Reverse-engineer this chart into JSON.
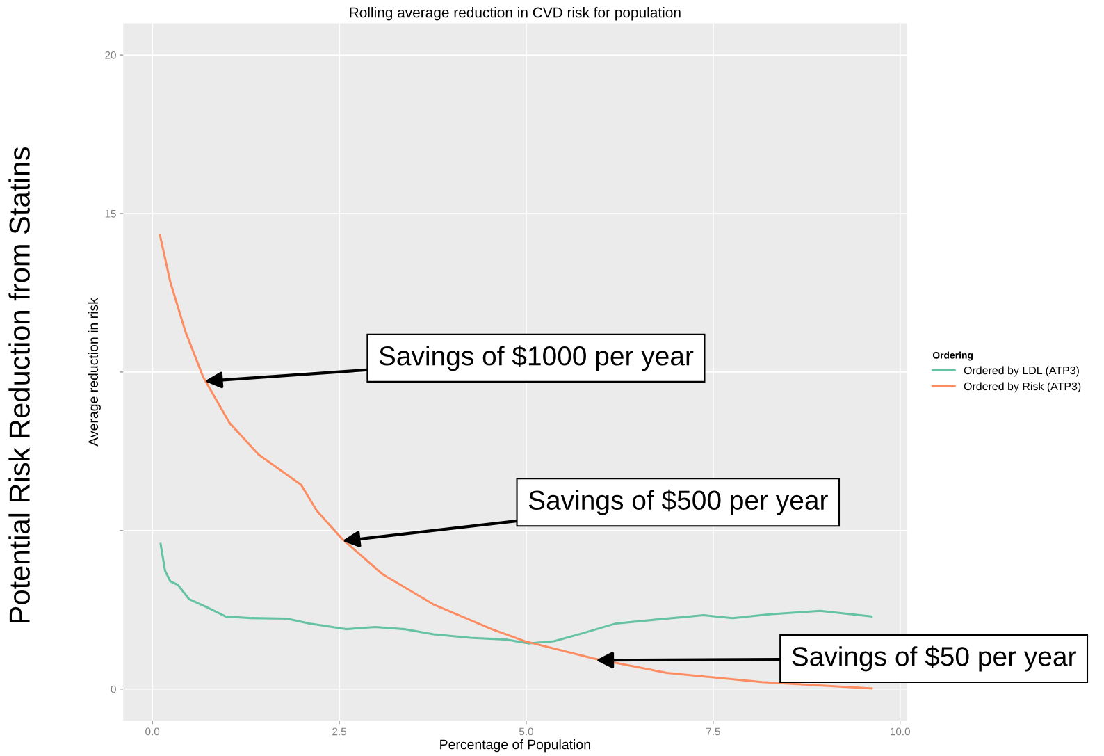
{
  "chart_data": {
    "type": "line",
    "title": "Rolling average reduction in CVD risk for population",
    "xlabel": "Percentage of Population",
    "ylabel": "Average reduction in risk",
    "legend_title": "Ordering",
    "xlim": [
      -0.39,
      10.09
    ],
    "xticks": [
      {
        "value": 0,
        "label": "0.0"
      },
      2.5,
      {
        "value": 5,
        "label": "5.0"
      },
      7.5,
      {
        "value": 10,
        "label": "10.0"
      }
    ],
    "ylim": [
      -1.0,
      21.0
    ],
    "yticks": [
      0,
      {
        "value": 5,
        "label": null
      },
      {
        "value": 10,
        "label": null
      },
      15,
      20
    ],
    "grid": true,
    "legend": "right",
    "series": [
      {
        "name": "Ordered by LDL (ATP3)",
        "color": "#66c2a5",
        "x": [
          0.11,
          0.17,
          0.24,
          0.34,
          0.49,
          0.73,
          0.98,
          1.32,
          1.8,
          2.1,
          2.59,
          2.98,
          3.37,
          3.76,
          4.25,
          4.74,
          5.03,
          5.37,
          5.71,
          6.2,
          6.69,
          7.37,
          7.76,
          8.25,
          8.93,
          9.62
        ],
        "values": [
          4.58,
          3.73,
          3.4,
          3.29,
          2.84,
          2.58,
          2.29,
          2.24,
          2.22,
          2.07,
          1.89,
          1.96,
          1.89,
          1.73,
          1.62,
          1.56,
          1.44,
          1.51,
          1.73,
          2.07,
          2.18,
          2.33,
          2.24,
          2.36,
          2.47,
          2.29
        ]
      },
      {
        "name": "Ordered by Risk (ATP3)",
        "color": "#fc8d62",
        "x": [
          0.1,
          0.24,
          0.44,
          0.68,
          1.03,
          1.42,
          1.99,
          2.2,
          2.54,
          3.08,
          3.76,
          4.54,
          4.98,
          5.91,
          6.88,
          8.15,
          9.62
        ],
        "values": [
          14.33,
          12.84,
          11.29,
          9.84,
          8.4,
          7.4,
          6.44,
          5.62,
          4.73,
          3.62,
          2.67,
          1.89,
          1.51,
          0.96,
          0.51,
          0.22,
          0.02
        ]
      }
    ],
    "annotations": [
      {
        "text": "Savings of $1000 per year",
        "x": 0.7,
        "y": 9.71
      },
      {
        "text": "Savings of $500 per year",
        "x": 2.54,
        "y": 4.67
      },
      {
        "text": "Savings of $50 per year",
        "x": 5.93,
        "y": 0.91
      },
      "Potential Risk Reduction from Statins"
    ]
  }
}
